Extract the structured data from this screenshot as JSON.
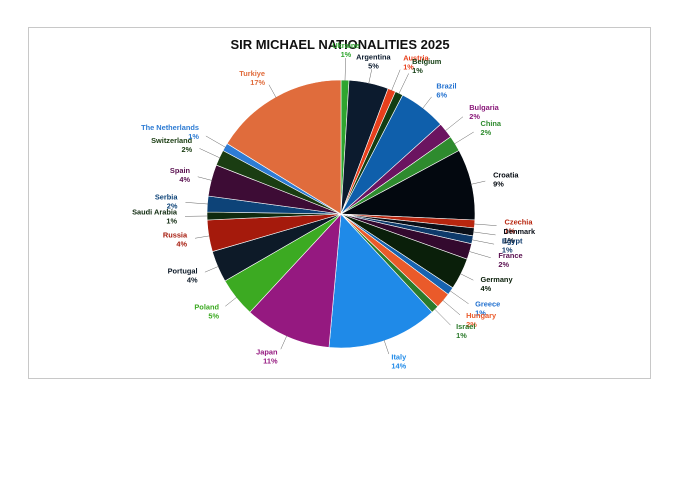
{
  "chart_data": {
    "type": "pie",
    "title": "SIR MICHAEL NATIONALITIES 2025",
    "slices": [
      {
        "name": "Ukraine",
        "value": 1,
        "label": "1%",
        "color": "#2fa52f"
      },
      {
        "name": "Argentina",
        "value": 5,
        "label": "5%",
        "color": "#0c1b2e"
      },
      {
        "name": "Austria",
        "value": 1,
        "label": "1%",
        "color": "#e8401c"
      },
      {
        "name": "Belgium",
        "value": 1,
        "label": "1%",
        "color": "#123d12"
      },
      {
        "name": "Brazil",
        "value": 6,
        "label": "6%",
        "color": "#0f5fab"
      },
      {
        "name": "Bulgaria",
        "value": 2,
        "label": "2%",
        "color": "#6b1460"
      },
      {
        "name": "China",
        "value": 2,
        "label": "2%",
        "color": "#2e8b2e"
      },
      {
        "name": "Croatia",
        "value": 9,
        "label": "9%",
        "color": "#03080f"
      },
      {
        "name": "Czechia",
        "value": 1,
        "label": "1%",
        "color": "#b8260f"
      },
      {
        "name": "Denmark",
        "value": 1,
        "label": "1%",
        "color": "#0a0f18"
      },
      {
        "name": "Egypt",
        "value": 1,
        "label": "1%",
        "color": "#0e3a6b"
      },
      {
        "name": "France",
        "value": 2,
        "label": "2%",
        "color": "#33092e"
      },
      {
        "name": "Germany",
        "value": 4,
        "label": "4%",
        "color": "#0a1f0a"
      },
      {
        "name": "Greece",
        "value": 1,
        "label": "1%",
        "color": "#1763b0"
      },
      {
        "name": "Hungary",
        "value": 2,
        "label": "2%",
        "color": "#ea5a2a"
      },
      {
        "name": "Israel",
        "value": 1,
        "label": "1%",
        "color": "#2b7a2b"
      },
      {
        "name": "Italy",
        "value": 14,
        "label": "14%",
        "color": "#1f8ae8"
      },
      {
        "name": "Japan",
        "value": 11,
        "label": "11%",
        "color": "#951980"
      },
      {
        "name": "Poland",
        "value": 5,
        "label": "5%",
        "color": "#3caa22"
      },
      {
        "name": "Portugal",
        "value": 4,
        "label": "4%",
        "color": "#0d1a28"
      },
      {
        "name": "Russia",
        "value": 4,
        "label": "4%",
        "color": "#a51a0c"
      },
      {
        "name": "Saudi Arabia",
        "value": 1,
        "label": "1%",
        "color": "#0f2a0f"
      },
      {
        "name": "Serbia",
        "value": 2,
        "label": "2%",
        "color": "#0d4378"
      },
      {
        "name": "Spain",
        "value": 4,
        "label": "4%",
        "color": "#3d0c35"
      },
      {
        "name": "Switzerland",
        "value": 2,
        "label": "2%",
        "color": "#1a3d12"
      },
      {
        "name": "The Netherlands",
        "value": 1,
        "label": "1%",
        "color": "#2e7cd4"
      },
      {
        "name": "Turkiye",
        "value": 17,
        "label": "17%",
        "color": "#e06c3c"
      }
    ],
    "label_colors": {
      "Ukraine": "#2fa52f",
      "Argentina": "#0c1b2e",
      "Austria": "#e8401c",
      "Belgium": "#123d12",
      "Brazil": "#1f6fcf",
      "Bulgaria": "#8a1a7a",
      "China": "#2e8b2e",
      "Croatia": "#03080f",
      "Czechia": "#b8260f",
      "Denmark": "#0a0f18",
      "Egypt": "#0e3a6b",
      "France": "#5a1050",
      "Germany": "#0a1f0a",
      "Greece": "#1f6fcf",
      "Hungary": "#ea5a2a",
      "Israel": "#2b7a2b",
      "Italy": "#1f8ae8",
      "Japan": "#951980",
      "Poland": "#3caa22",
      "Portugal": "#0d1a28",
      "Russia": "#a51a0c",
      "Saudi Arabia": "#0f2a0f",
      "Serbia": "#0d4378",
      "Spain": "#5a1050",
      "Switzerland": "#1a3d12",
      "The Netherlands": "#2e7cd4",
      "Turkiye": "#e06c3c"
    },
    "legend": "none",
    "data_labels": "category name and percentage, outside end with leader lines"
  }
}
